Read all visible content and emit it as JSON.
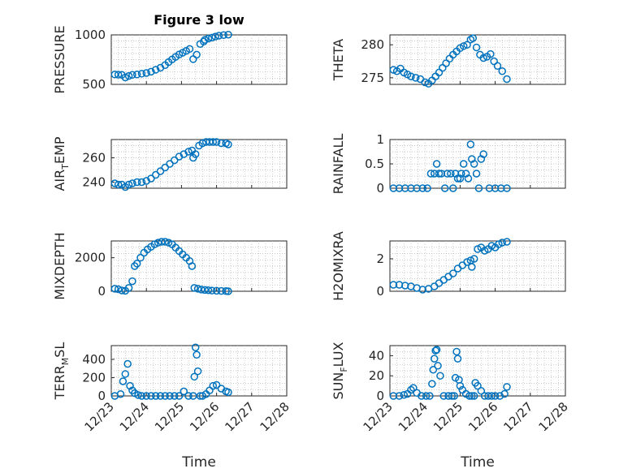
{
  "figure_title": "Figure 3 low",
  "xlabel": "Time",
  "marker_color": "#0072BD",
  "chart_data": [
    {
      "type": "scatter",
      "ylabel": "PRESSURE",
      "ylabel_sub": "",
      "ylim": [
        500,
        1000
      ],
      "yticks": [
        500,
        1000
      ],
      "x": [
        0.3,
        0.6,
        0.9,
        1.2,
        1.5,
        1.8,
        2.2,
        2.6,
        3.0,
        3.4,
        3.8,
        4.2,
        4.6,
        4.9,
        5.2,
        5.5,
        5.8,
        6.1,
        6.4,
        6.7,
        7.0,
        7.3,
        7.6,
        7.9,
        8.0,
        8.3,
        8.6,
        8.9,
        9.2,
        9.6,
        10.0
      ],
      "y": [
        600,
        598,
        596,
        570,
        585,
        596,
        600,
        608,
        615,
        628,
        648,
        668,
        695,
        725,
        752,
        778,
        802,
        820,
        838,
        858,
        755,
        800,
        908,
        932,
        950,
        963,
        972,
        983,
        992,
        998,
        1002
      ]
    },
    {
      "type": "scatter",
      "ylabel": "THETA",
      "ylabel_sub": "",
      "ylim": [
        274,
        281.5
      ],
      "yticks": [
        275,
        280
      ],
      "x": [
        0.3,
        0.6,
        0.9,
        1.2,
        1.5,
        1.8,
        2.2,
        2.6,
        3.0,
        3.3,
        3.6,
        3.9,
        4.2,
        4.5,
        4.8,
        5.1,
        5.4,
        5.7,
        6.0,
        6.3,
        6.6,
        6.9,
        7.1,
        7.4,
        7.7,
        8.0,
        8.3,
        8.6,
        8.9,
        9.2,
        9.6,
        10.0
      ],
      "y": [
        276.2,
        276.0,
        276.4,
        275.8,
        275.5,
        275.2,
        275.0,
        274.8,
        274.3,
        274.1,
        274.6,
        275.2,
        275.8,
        276.5,
        277.2,
        277.9,
        278.5,
        279.0,
        279.5,
        279.8,
        280.0,
        280.8,
        281.0,
        279.6,
        278.5,
        278.0,
        278.2,
        278.6,
        277.5,
        276.8,
        276.0,
        274.8
      ]
    },
    {
      "type": "scatter",
      "ylabel": "AIR",
      "ylabel_sub": "T",
      "ylabel_tail": "EMP",
      "ylim": [
        235,
        275
      ],
      "yticks": [
        240,
        260
      ],
      "x": [
        0.3,
        0.6,
        0.9,
        1.2,
        1.5,
        1.8,
        2.2,
        2.6,
        3.0,
        3.4,
        3.8,
        4.2,
        4.6,
        5.0,
        5.4,
        5.8,
        6.2,
        6.6,
        6.9,
        7.0,
        7.2,
        7.5,
        7.8,
        8.1,
        8.4,
        8.7,
        9.0,
        9.4,
        9.8,
        10.0
      ],
      "y": [
        239,
        238,
        238,
        236,
        238,
        239,
        240,
        240,
        241,
        243,
        246,
        249,
        252,
        255,
        258,
        261,
        263,
        265,
        266,
        260,
        263,
        270,
        272,
        273,
        273,
        273,
        273,
        272,
        272,
        271
      ]
    },
    {
      "type": "scatter",
      "ylabel": "RAINFALL",
      "ylabel_sub": "",
      "ylim": [
        0,
        1
      ],
      "yticks": [
        0,
        0.5,
        1
      ],
      "x": [
        0.3,
        0.8,
        1.3,
        1.8,
        2.3,
        2.8,
        3.2,
        3.5,
        3.8,
        4.0,
        4.2,
        4.4,
        4.7,
        4.9,
        5.2,
        5.4,
        5.6,
        5.8,
        6.0,
        6.1,
        6.3,
        6.5,
        6.7,
        6.9,
        7.0,
        7.2,
        7.4,
        7.6,
        7.8,
        8.0,
        8.5,
        9.0,
        9.5,
        10.0
      ],
      "y": [
        0,
        0,
        0,
        0,
        0,
        0,
        0,
        0.3,
        0.3,
        0.5,
        0.3,
        0.3,
        0,
        0.3,
        0.3,
        0,
        0.3,
        0.2,
        0.2,
        0.3,
        0.5,
        0.3,
        0.2,
        0.9,
        0.6,
        0.5,
        0.3,
        0,
        0.6,
        0.7,
        0,
        0,
        0,
        0
      ]
    },
    {
      "type": "scatter",
      "ylabel": "MIXDEPTH",
      "ylabel_sub": "",
      "ylim": [
        0,
        3000
      ],
      "yticks": [
        0,
        2000
      ],
      "x": [
        0.3,
        0.6,
        0.9,
        1.2,
        1.5,
        1.8,
        2.0,
        2.2,
        2.5,
        2.8,
        3.1,
        3.4,
        3.7,
        4.0,
        4.3,
        4.6,
        4.9,
        5.2,
        5.5,
        5.8,
        6.1,
        6.4,
        6.7,
        6.9,
        7.1,
        7.4,
        7.7,
        8.0,
        8.3,
        8.6,
        9.0,
        9.4,
        9.8,
        10.0
      ],
      "y": [
        150,
        120,
        50,
        30,
        200,
        600,
        1500,
        1650,
        2000,
        2300,
        2500,
        2650,
        2800,
        2900,
        2950,
        2950,
        2900,
        2800,
        2600,
        2400,
        2200,
        2000,
        1800,
        1500,
        200,
        150,
        100,
        80,
        60,
        40,
        30,
        20,
        10,
        0
      ]
    },
    {
      "type": "scatter",
      "ylabel": "H2OMIXRA",
      "ylabel_sub": "",
      "ylim": [
        0,
        3.1
      ],
      "yticks": [
        0,
        2
      ],
      "x": [
        0.3,
        0.8,
        1.3,
        1.8,
        2.3,
        2.8,
        3.3,
        3.8,
        4.2,
        4.6,
        5.0,
        5.4,
        5.8,
        6.2,
        6.6,
        6.9,
        7.0,
        7.2,
        7.5,
        7.8,
        8.1,
        8.4,
        8.7,
        9.0,
        9.3,
        9.6,
        10.0
      ],
      "y": [
        0.4,
        0.4,
        0.35,
        0.3,
        0.2,
        0.1,
        0.15,
        0.3,
        0.5,
        0.7,
        0.9,
        1.1,
        1.4,
        1.6,
        1.8,
        1.9,
        1.5,
        2.0,
        2.6,
        2.7,
        2.5,
        2.6,
        2.8,
        2.7,
        2.9,
        3.0,
        3.05
      ]
    },
    {
      "type": "scatter",
      "ylabel": "TERR",
      "ylabel_sub": "M",
      "ylabel_tail": "SL",
      "ylim": [
        0,
        550
      ],
      "yticks": [
        0,
        200,
        400
      ],
      "x": [
        0.3,
        0.8,
        1.0,
        1.2,
        1.4,
        1.6,
        1.8,
        2.0,
        2.3,
        2.6,
        3.0,
        3.4,
        3.8,
        4.2,
        4.6,
        5.0,
        5.4,
        5.8,
        6.2,
        6.6,
        7.0,
        7.1,
        7.2,
        7.3,
        7.4,
        7.6,
        7.8,
        8.1,
        8.4,
        8.7,
        9.0,
        9.4,
        9.8,
        10.0
      ],
      "y": [
        0,
        20,
        160,
        240,
        350,
        110,
        60,
        30,
        10,
        0,
        0,
        0,
        0,
        0,
        0,
        0,
        0,
        0,
        50,
        0,
        0,
        210,
        530,
        450,
        270,
        0,
        0,
        20,
        60,
        110,
        120,
        80,
        50,
        40
      ]
    },
    {
      "type": "scatter",
      "ylabel": "SUN",
      "ylabel_sub": "F",
      "ylabel_tail": "LUX",
      "ylim": [
        0,
        50
      ],
      "yticks": [
        0,
        20,
        40
      ],
      "x": [
        0.3,
        0.8,
        1.2,
        1.5,
        1.8,
        2.0,
        2.3,
        2.7,
        3.1,
        3.4,
        3.6,
        3.7,
        3.8,
        3.9,
        4.0,
        4.1,
        4.3,
        4.6,
        5.0,
        5.3,
        5.5,
        5.6,
        5.7,
        5.8,
        5.9,
        6.0,
        6.2,
        6.5,
        6.8,
        7.0,
        7.2,
        7.3,
        7.5,
        7.8,
        8.1,
        8.4,
        8.7,
        9.0,
        9.4,
        9.8,
        10.0
      ],
      "y": [
        0,
        0,
        1,
        2,
        6,
        8,
        3,
        0,
        0,
        0,
        12,
        26,
        37,
        45,
        46,
        30,
        20,
        0,
        0,
        0,
        0,
        18,
        44,
        37,
        16,
        10,
        6,
        2,
        0,
        0,
        0,
        13,
        10,
        5,
        0,
        0,
        0,
        0,
        0,
        2,
        9
      ]
    }
  ],
  "xticks": [
    "12/23",
    "12/24",
    "12/25",
    "12/26",
    "12/27",
    "12/28"
  ],
  "xlim": [
    0,
    15
  ]
}
